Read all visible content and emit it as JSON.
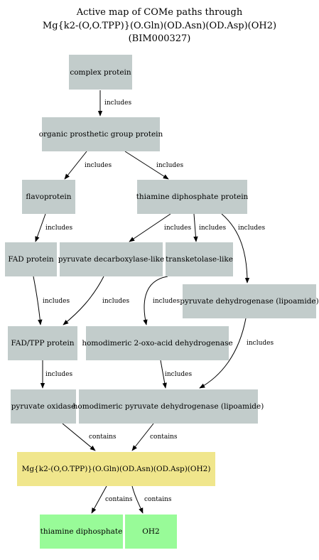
{
  "title": {
    "line1": "Active map of COMe paths through",
    "line2": "Mg{k2-(O,O.TPP)}(O.Gln)(OD.Asn)(OD.Asp)(OH2)",
    "line3": "(BIM000327)"
  },
  "colors": {
    "node_grey": "#c2cccb",
    "node_yellow": "#f0e68c",
    "node_green": "#98fb98",
    "edge": "#000000"
  },
  "nodes": {
    "complex_protein": "complex protein",
    "organic_prosthetic": "organic prosthetic group protein",
    "flavoprotein": "flavoprotein",
    "thiamine_dp_protein": "thiamine diphosphate protein",
    "fad_protein": "FAD protein",
    "pyruvate_decarboxylase": "pyruvate decarboxylase-like",
    "transketolase": "transketolase-like",
    "pyruvate_dehydrogenase_lipo": "pyruvate dehydrogenase (lipoamide)",
    "fad_tpp": "FAD/TPP protein",
    "homodimeric_oxo": "homodimeric 2-oxo-acid dehydrogenase",
    "pyruvate_oxidase": "pyruvate oxidase",
    "homodimeric_pyruvate": "homodimeric pyruvate dehydrogenase (lipoamide)",
    "mg_complex": "Mg{k2-(O,O.TPP)}(O.Gln)(OD.Asn)(OD.Asp)(OH2)",
    "thiamine_diphosphate": "thiamine diphosphate",
    "oh2": "OH2"
  },
  "edge_labels": {
    "includes": "includes",
    "contains": "contains"
  }
}
